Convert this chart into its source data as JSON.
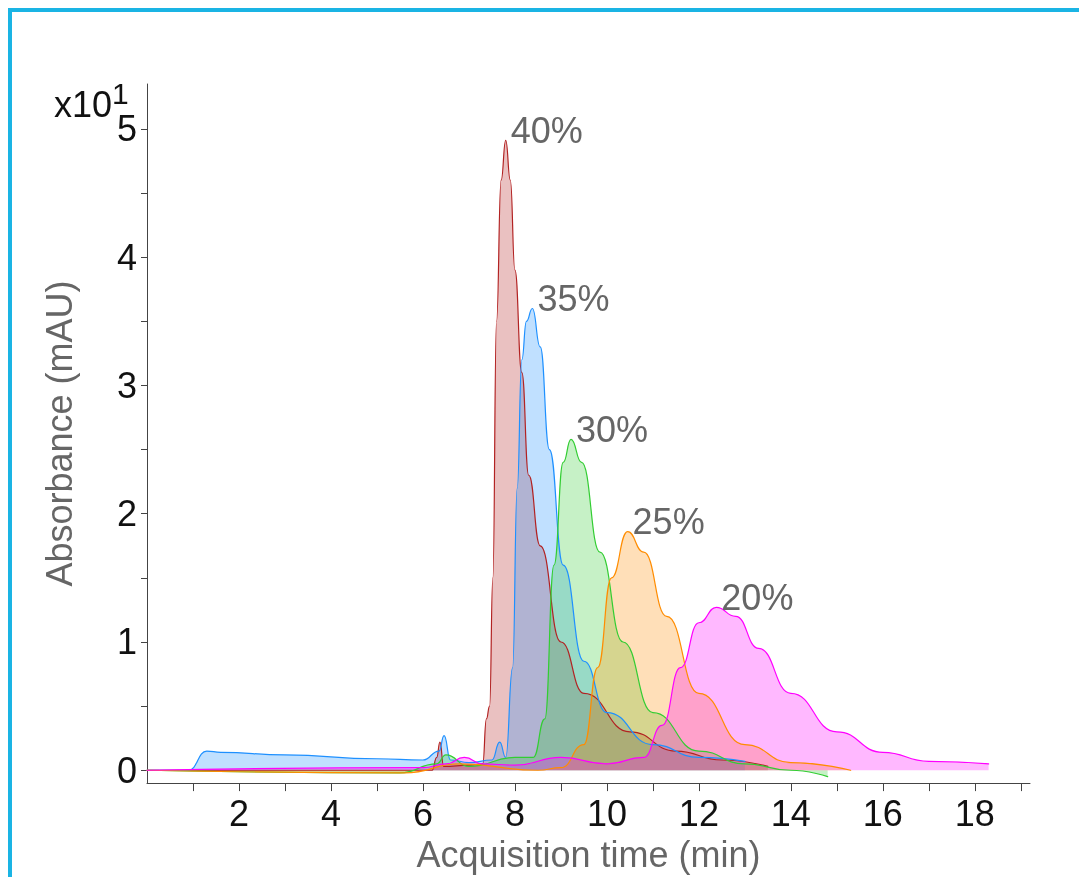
{
  "chart_data": {
    "type": "area",
    "xlabel": "Acquisition time (min)",
    "ylabel": "Absorbance (mAU)",
    "annotations": [
      "x10$^{1}$"
    ],
    "xlim": [
      0,
      19.2
    ],
    "ylim": [
      -0.1,
      5.35
    ],
    "xticks": [
      {
        "value": 1,
        "label": null
      },
      2,
      {
        "value": 3,
        "label": null
      },
      4,
      {
        "value": 5,
        "label": null
      },
      6,
      {
        "value": 7,
        "label": null
      },
      8,
      {
        "value": 9,
        "label": null
      },
      10,
      {
        "value": 11,
        "label": null
      },
      12,
      {
        "value": 13,
        "label": null
      },
      14,
      {
        "value": 15,
        "label": null
      },
      16,
      {
        "value": 17,
        "label": null
      },
      18,
      {
        "value": 19,
        "label": null
      }
    ],
    "yticks": [
      0,
      {
        "value": 0.5,
        "label": null
      },
      1,
      {
        "value": 1.5,
        "label": null
      },
      2,
      {
        "value": 2.5,
        "label": null
      },
      3,
      {
        "value": 3.5,
        "label": null
      },
      4,
      {
        "value": 4.5,
        "label": null
      },
      5
    ],
    "grid": false,
    "legend": false,
    "marker": "none",
    "line_style": "solid",
    "series": [
      {
        "name": "40%",
        "color": "#b22222",
        "x": [
          0,
          6.2,
          6.3,
          6.37,
          6.45,
          7.0,
          7.3,
          7.38,
          7.45,
          7.52,
          7.6,
          7.7,
          7.8,
          7.9,
          8.0,
          8.15,
          8.3,
          8.55,
          9.0,
          9.5,
          10.5,
          11.5,
          12.5,
          13.5
        ],
        "values": [
          0,
          0,
          0.1,
          0.22,
          0.03,
          0.04,
          0.05,
          0.4,
          0.5,
          1.5,
          3.5,
          4.6,
          4.91,
          4.6,
          3.9,
          3.1,
          2.3,
          1.75,
          1.0,
          0.6,
          0.3,
          0.15,
          0.08,
          0.03
        ]
      },
      {
        "name": "35%",
        "color": "#1e90ff",
        "x": [
          0,
          0.9,
          1.3,
          1.6,
          3.0,
          5.0,
          6.0,
          6.35,
          6.46,
          6.6,
          7.0,
          7.5,
          7.67,
          7.8,
          7.95,
          8.05,
          8.15,
          8.25,
          8.38,
          8.55,
          8.75,
          9.05,
          9.5,
          10.0,
          11.0,
          12.0,
          13.0
        ],
        "values": [
          0,
          0,
          0.15,
          0.14,
          0.12,
          0.09,
          0.08,
          0.15,
          0.27,
          0.08,
          0.06,
          0.08,
          0.22,
          0.1,
          0.8,
          2.2,
          3.2,
          3.5,
          3.6,
          3.3,
          2.5,
          1.6,
          0.85,
          0.45,
          0.2,
          0.1,
          0.07
        ]
      },
      {
        "name": "30%",
        "color": "#32cd32",
        "x": [
          0,
          5.5,
          6.3,
          6.5,
          7.0,
          8.0,
          8.4,
          8.65,
          8.85,
          9.05,
          9.22,
          9.45,
          9.85,
          10.35,
          11.0,
          12.0,
          13.0,
          14.0,
          14.8
        ],
        "values": [
          0,
          -0.02,
          0.05,
          0.12,
          0.03,
          0.1,
          0.1,
          0.4,
          1.6,
          2.4,
          2.58,
          2.4,
          1.7,
          1.0,
          0.45,
          0.15,
          0.05,
          0.0,
          -0.05
        ]
      },
      {
        "name": "25%",
        "color": "#ff8c00",
        "x": [
          0,
          5.6,
          6.8,
          8.5,
          9.0,
          9.5,
          9.8,
          10.1,
          10.45,
          10.8,
          11.3,
          12.0,
          13.0,
          14.0,
          15.3
        ],
        "values": [
          0,
          -0.02,
          0.05,
          0,
          0.02,
          0.2,
          0.8,
          1.5,
          1.86,
          1.7,
          1.2,
          0.6,
          0.2,
          0.06,
          0.0
        ]
      },
      {
        "name": "20%",
        "color": "#ff00ff",
        "x": [
          0,
          6.0,
          6.5,
          6.9,
          7.3,
          8.0,
          9.0,
          10.0,
          10.8,
          11.2,
          11.6,
          12.0,
          12.38,
          12.8,
          13.3,
          14.0,
          15.0,
          16.0,
          17.0,
          18.3
        ],
        "values": [
          0,
          0.02,
          0.05,
          0.1,
          0.05,
          0.04,
          0.1,
          0.05,
          0.1,
          0.35,
          0.8,
          1.15,
          1.27,
          1.2,
          0.95,
          0.6,
          0.3,
          0.14,
          0.07,
          0.05
        ]
      }
    ]
  }
}
